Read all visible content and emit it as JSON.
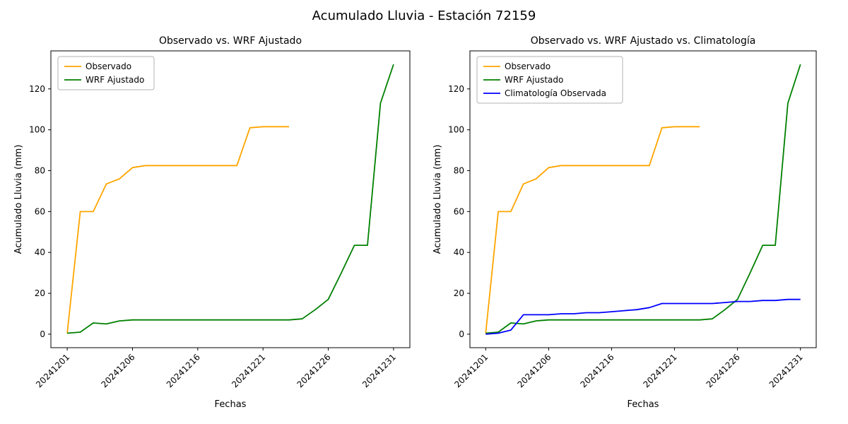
{
  "page": {
    "suptitle": "Acumulado Lluvia - Estación 72159"
  },
  "chart_data": [
    {
      "type": "line",
      "title": "Observado vs. WRF Ajustado",
      "xlabel": "Fechas",
      "ylabel": "Acumulado Lluvia (mm)",
      "legend_position": "upper-left",
      "grid": false,
      "categories": [
        "20241201",
        "20241202",
        "20241203",
        "20241204",
        "20241205",
        "20241206",
        "20241207",
        "20241208",
        "20241214",
        "20241215",
        "20241216",
        "20241217",
        "20241218",
        "20241219",
        "20241220",
        "20241221",
        "20241222",
        "20241223",
        "20241224",
        "20241225",
        "20241226",
        "20241227",
        "20241228",
        "20241229",
        "20241230",
        "20241231"
      ],
      "xticks": [
        {
          "index": 0,
          "label": "20241201"
        },
        {
          "index": 5,
          "label": "20241206"
        },
        {
          "index": 10,
          "label": "20241216"
        },
        {
          "index": 15,
          "label": "20241221"
        },
        {
          "index": 20,
          "label": "20241226"
        },
        {
          "index": 25,
          "label": "20241231"
        }
      ],
      "yticks": [
        0,
        20,
        40,
        60,
        80,
        100,
        120
      ],
      "xlim": [
        -1.25,
        26.25
      ],
      "ylim": [
        -6.6,
        138.6
      ],
      "series": [
        {
          "name": "Observado",
          "color": "#FFA500",
          "values": [
            0.5,
            60,
            60,
            73.5,
            76,
            81.5,
            82.5,
            82.5,
            82.5,
            82.5,
            82.5,
            82.5,
            82.5,
            82.5,
            101,
            101.5,
            101.5,
            101.5,
            null,
            null,
            null,
            null,
            null,
            null,
            null,
            null
          ]
        },
        {
          "name": "WRF Ajustado",
          "color": "#008000",
          "values": [
            0.5,
            1,
            5.5,
            5,
            6.5,
            7,
            7,
            7,
            7,
            7,
            7,
            7,
            7,
            7,
            7,
            7,
            7,
            7,
            7.5,
            12,
            17,
            30,
            43.5,
            43.5,
            113,
            132
          ]
        }
      ]
    },
    {
      "type": "line",
      "title": "Observado vs. WRF Ajustado vs. Climatología",
      "xlabel": "Fechas",
      "ylabel": "Acumulado Lluvia (mm)",
      "legend_position": "upper-left",
      "grid": false,
      "categories": [
        "20241201",
        "20241202",
        "20241203",
        "20241204",
        "20241205",
        "20241206",
        "20241207",
        "20241208",
        "20241214",
        "20241215",
        "20241216",
        "20241217",
        "20241218",
        "20241219",
        "20241220",
        "20241221",
        "20241222",
        "20241223",
        "20241224",
        "20241225",
        "20241226",
        "20241227",
        "20241228",
        "20241229",
        "20241230",
        "20241231"
      ],
      "xticks": [
        {
          "index": 0,
          "label": "20241201"
        },
        {
          "index": 5,
          "label": "20241206"
        },
        {
          "index": 10,
          "label": "20241216"
        },
        {
          "index": 15,
          "label": "20241221"
        },
        {
          "index": 20,
          "label": "20241226"
        },
        {
          "index": 25,
          "label": "20241231"
        }
      ],
      "yticks": [
        0,
        20,
        40,
        60,
        80,
        100,
        120
      ],
      "xlim": [
        -1.25,
        26.25
      ],
      "ylim": [
        -6.6,
        138.6
      ],
      "series": [
        {
          "name": "Observado",
          "color": "#FFA500",
          "values": [
            0.5,
            60,
            60,
            73.5,
            76,
            81.5,
            82.5,
            82.5,
            82.5,
            82.5,
            82.5,
            82.5,
            82.5,
            82.5,
            101,
            101.5,
            101.5,
            101.5,
            null,
            null,
            null,
            null,
            null,
            null,
            null,
            null
          ]
        },
        {
          "name": "WRF Ajustado",
          "color": "#008000",
          "values": [
            0.5,
            1,
            5.5,
            5,
            6.5,
            7,
            7,
            7,
            7,
            7,
            7,
            7,
            7,
            7,
            7,
            7,
            7,
            7,
            7.5,
            12,
            17,
            30,
            43.5,
            43.5,
            113,
            132
          ]
        },
        {
          "name": "Climatología Observada",
          "color": "#0000FF",
          "values": [
            0,
            0.5,
            2,
            9.5,
            9.5,
            9.5,
            10,
            10,
            10.5,
            10.5,
            11,
            11.5,
            12,
            13,
            15,
            15,
            15,
            15,
            15,
            15.5,
            16,
            16,
            16.5,
            16.5,
            17,
            17
          ]
        }
      ]
    }
  ]
}
